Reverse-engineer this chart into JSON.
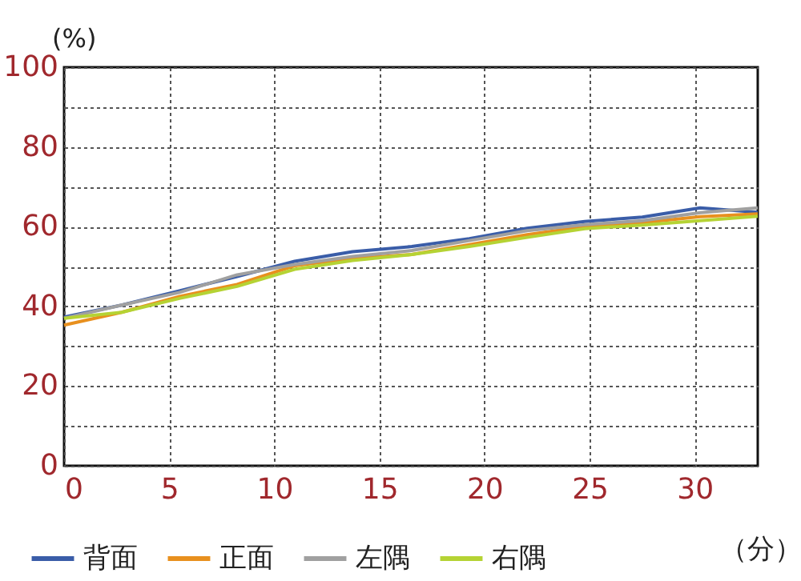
{
  "chart_data": {
    "type": "line",
    "xlabel": "（分）",
    "ylabel": "(%)",
    "x": [
      0,
      2.74,
      5.49,
      8.23,
      10.97,
      13.72,
      16.54,
      19.28,
      22.03,
      24.77,
      27.51,
      30.26,
      33
    ],
    "series": [
      {
        "name": "背面",
        "color": "#3a5da8",
        "values": [
          37.3,
          40.3,
          43.9,
          47.5,
          51.3,
          53.7,
          55,
          57,
          59.6,
          61.3,
          62.4,
          64.7,
          63.6
        ]
      },
      {
        "name": "正面",
        "color": "#e8901e",
        "values": [
          35.3,
          38.5,
          42.5,
          45.5,
          50.2,
          52,
          53,
          55.5,
          58,
          60,
          61,
          62.5,
          63.2
        ]
      },
      {
        "name": "左隅",
        "color": "#a0a0a0",
        "values": [
          37,
          40.3,
          43.5,
          47.9,
          50.5,
          52.5,
          54,
          56.5,
          59,
          60.5,
          61.5,
          63.5,
          64.7
        ]
      },
      {
        "name": "右隅",
        "color": "#b5d334",
        "values": [
          37,
          38.5,
          42,
          45,
          49.3,
          51.5,
          53,
          55,
          57.3,
          59.5,
          60.4,
          61.5,
          62.6
        ]
      }
    ],
    "xlim": [
      0,
      33
    ],
    "xticks": [
      0,
      5,
      10,
      15,
      20,
      25,
      30
    ],
    "ylim": [
      0,
      100
    ],
    "yticks": [
      0,
      {
        "value": 10,
        "label": null
      },
      20,
      {
        "value": 30,
        "label": null
      },
      40,
      {
        "value": 50,
        "label": null
      },
      60,
      {
        "value": 70,
        "label": null
      },
      80,
      {
        "value": 90,
        "label": null
      },
      100
    ],
    "grid": true,
    "legend": "bottom",
    "line_style": "solid"
  }
}
